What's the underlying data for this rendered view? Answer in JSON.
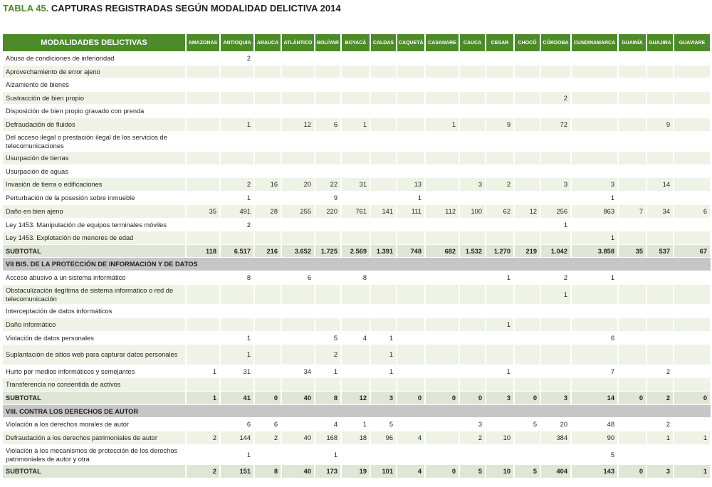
{
  "title": {
    "label": "TABLA 45.",
    "text": "CAPTURAS REGISTRADAS SEGÚN MODALIDAD DELICTIVA 2014"
  },
  "columns": [
    "MODALIDADES DELICTIVAS",
    "AMAZONAS",
    "ANTIOQUIA",
    "ARAUCA",
    "ATLÁNTICO",
    "BOLÍVAR",
    "BOYACÁ",
    "CALDAS",
    "CAQUETÁ",
    "CASANARE",
    "CAUCA",
    "CESAR",
    "CHOCÓ",
    "CÓRDOBA",
    "CUNDINAMARCA",
    "GUAINÍA",
    "GUAJIRA",
    "GUAVIARE"
  ],
  "rows": [
    {
      "type": "data",
      "h": 19,
      "cells": [
        "Abuso de condiciones de inferioridad",
        "",
        "2",
        "",
        "",
        "",
        "",
        "",
        "",
        "",
        "",
        "",
        "",
        "",
        "",
        "",
        "",
        ""
      ]
    },
    {
      "type": "data",
      "h": 18,
      "cells": [
        "Aprovechamiento de error ajeno",
        "",
        "",
        "",
        "",
        "",
        "",
        "",
        "",
        "",
        "",
        "",
        "",
        "",
        "",
        "",
        "",
        ""
      ]
    },
    {
      "type": "data",
      "h": 19,
      "cells": [
        "Alzamiento de bienes",
        "",
        "",
        "",
        "",
        "",
        "",
        "",
        "",
        "",
        "",
        "",
        "",
        "",
        "",
        "",
        "",
        ""
      ]
    },
    {
      "type": "data",
      "h": 18,
      "cells": [
        "Sustracción de bien propio",
        "",
        "",
        "",
        "",
        "",
        "",
        "",
        "",
        "",
        "",
        "",
        "",
        "2",
        "",
        "",
        "",
        ""
      ]
    },
    {
      "type": "data",
      "h": 19,
      "cells": [
        "Disposición de bien propio gravado con prenda",
        "",
        "",
        "",
        "",
        "",
        "",
        "",
        "",
        "",
        "",
        "",
        "",
        "",
        "",
        "",
        "",
        ""
      ]
    },
    {
      "type": "data",
      "h": 19,
      "cells": [
        "Defraudación de fluidos",
        "",
        "1",
        "",
        "12",
        "6",
        "1",
        "",
        "",
        "1",
        "",
        "9",
        "",
        "72",
        "",
        "",
        "9",
        ""
      ]
    },
    {
      "type": "data",
      "h": 28,
      "cells": [
        "Del acceso ilegal o prestación ilegal de los servicios de telecomunicaciones",
        "",
        "",
        "",
        "",
        "",
        "",
        "",
        "",
        "",
        "",
        "",
        "",
        "",
        "",
        "",
        "",
        ""
      ]
    },
    {
      "type": "data",
      "h": 19,
      "cells": [
        "Usurpación de tierras",
        "",
        "",
        "",
        "",
        "",
        "",
        "",
        "",
        "",
        "",
        "",
        "",
        "",
        "",
        "",
        "",
        ""
      ]
    },
    {
      "type": "data",
      "h": 18,
      "cells": [
        "Usurpación de aguas",
        "",
        "",
        "",
        "",
        "",
        "",
        "",
        "",
        "",
        "",
        "",
        "",
        "",
        "",
        "",
        "",
        ""
      ]
    },
    {
      "type": "data",
      "h": 19,
      "cells": [
        "Invasión de tierra o edificaciones",
        "",
        "2",
        "16",
        "20",
        "22",
        "31",
        "",
        "13",
        "",
        "3",
        "2",
        "",
        "3",
        "3",
        "",
        "14",
        ""
      ]
    },
    {
      "type": "data",
      "h": 19,
      "cells": [
        "Perturbación de la posesión sobre inmueble",
        "",
        "1",
        "",
        "",
        "9",
        "",
        "",
        "1",
        "",
        "",
        "",
        "",
        "",
        "1",
        "",
        "",
        ""
      ]
    },
    {
      "type": "data",
      "h": 19,
      "cells": [
        "Daño en bien ajeno",
        "35",
        "491",
        "28",
        "255",
        "220",
        "761",
        "141",
        "111",
        "112",
        "100",
        "62",
        "12",
        "256",
        "863",
        "7",
        "34",
        "6"
      ]
    },
    {
      "type": "data",
      "h": 18,
      "cells": [
        "Ley 1453. Manipulación de equipos terminales móviles",
        "",
        "2",
        "",
        "",
        "",
        "",
        "",
        "",
        "",
        "",
        "",
        "",
        "1",
        "",
        "",
        "",
        ""
      ]
    },
    {
      "type": "data",
      "h": 19,
      "cells": [
        "Ley 1453. Explotación de menores de edad",
        "",
        "",
        "",
        "",
        "",
        "",
        "",
        "",
        "",
        "",
        "",
        "",
        "",
        "1",
        "",
        "",
        ""
      ]
    },
    {
      "type": "sub",
      "h": 18,
      "cells": [
        "SUBTOTAL",
        "118",
        "6.517",
        "216",
        "3.652",
        "1.725",
        "2.569",
        "1.391",
        "748",
        "682",
        "1.532",
        "1.270",
        "219",
        "1.042",
        "3.858",
        "35",
        "537",
        "67"
      ]
    },
    {
      "type": "sec",
      "h": 19,
      "label": "VII BIS. DE LA PROTECCIÓN DE INFORMACIÓN Y DE DATOS"
    },
    {
      "type": "data",
      "h": 19,
      "cells": [
        "Acceso abusivo a un sistema informático",
        "",
        "8",
        "",
        "6",
        "",
        "8",
        "",
        "",
        "",
        "",
        "1",
        "",
        "2",
        "1",
        "",
        "",
        ""
      ]
    },
    {
      "type": "data",
      "h": 28,
      "cells": [
        "Obstaculización ilegítima de sistema informático o red de telecomunicación",
        "",
        "",
        "",
        "",
        "",
        "",
        "",
        "",
        "",
        "",
        "",
        "",
        "1",
        "",
        "",
        "",
        ""
      ]
    },
    {
      "type": "data",
      "h": 19,
      "cells": [
        "Interceptación de datos informáticos",
        "",
        "",
        "",
        "",
        "",
        "",
        "",
        "",
        "",
        "",
        "",
        "",
        "",
        "",
        "",
        "",
        ""
      ]
    },
    {
      "type": "data",
      "h": 19,
      "cells": [
        "Daño informático",
        "",
        "",
        "",
        "",
        "",
        "",
        "",
        "",
        "",
        "",
        "1",
        "",
        "",
        "",
        "",
        "",
        ""
      ]
    },
    {
      "type": "data",
      "h": 18,
      "cells": [
        "Violación de datos personales",
        "",
        "1",
        "",
        "",
        "5",
        "4",
        "1",
        "",
        "",
        "",
        "",
        "",
        "",
        "6",
        "",
        "",
        ""
      ]
    },
    {
      "type": "data",
      "h": 29,
      "cells": [
        "Suplantación de sitios web para capturar datos personales",
        "",
        "1",
        "",
        "",
        "2",
        "",
        "1",
        "",
        "",
        "",
        "",
        "",
        "",
        "",
        "",
        "",
        ""
      ]
    },
    {
      "type": "data",
      "h": 18,
      "cells": [
        "Hurto por medios informáticos y semejantes",
        "1",
        "31",
        "",
        "34",
        "1",
        "",
        "1",
        "",
        "",
        "",
        "1",
        "",
        "",
        "7",
        "",
        "2",
        ""
      ]
    },
    {
      "type": "data",
      "h": 19,
      "cells": [
        "Transferencia no consentida de activos",
        "",
        "",
        "",
        "",
        "",
        "",
        "",
        "",
        "",
        "",
        "",
        "",
        "",
        "",
        "",
        "",
        ""
      ]
    },
    {
      "type": "sub",
      "h": 19,
      "cells": [
        "SUBTOTAL",
        "1",
        "41",
        "0",
        "40",
        "8",
        "12",
        "3",
        "0",
        "0",
        "0",
        "3",
        "0",
        "3",
        "14",
        "0",
        "2",
        "0"
      ]
    },
    {
      "type": "sec",
      "h": 18,
      "label": "VIII. CONTRA LOS DERECHOS DE AUTOR"
    },
    {
      "type": "data",
      "h": 19,
      "cells": [
        "Violación a los derechos morales de autor",
        "",
        "6",
        "6",
        "",
        "4",
        "1",
        "5",
        "",
        "",
        "3",
        "",
        "5",
        "20",
        "48",
        "",
        "2",
        ""
      ]
    },
    {
      "type": "data",
      "h": 19,
      "cells": [
        "Defraudación a los derechos patrimoniales de autor",
        "2",
        "144",
        "2",
        "40",
        "168",
        "18",
        "96",
        "4",
        "",
        "2",
        "10",
        "",
        "384",
        "90",
        "",
        "1",
        "1"
      ]
    },
    {
      "type": "data",
      "h": 28,
      "cells": [
        "Violación a los mecanismos de protección de los derechos patrimoniales de autor y otra",
        "",
        "1",
        "",
        "",
        "1",
        "",
        "",
        "",
        "",
        "",
        "",
        "",
        "",
        "5",
        "",
        "",
        ""
      ]
    },
    {
      "type": "sub",
      "h": 19,
      "cells": [
        "SUBTOTAL",
        "2",
        "151",
        "8",
        "40",
        "173",
        "19",
        "101",
        "4",
        "0",
        "5",
        "10",
        "5",
        "404",
        "143",
        "0",
        "3",
        "1"
      ]
    }
  ]
}
